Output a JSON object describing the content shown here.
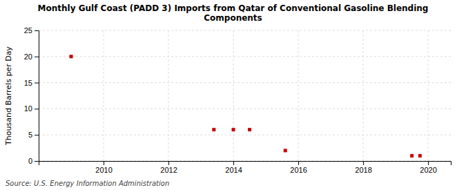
{
  "chart_data": {
    "type": "scatter",
    "title": "Monthly Gulf Coast (PADD 3) Imports from Qatar of Conventional Gasoline Blending\nComponents",
    "y_label": "Thousand Barrels per Day",
    "source": "Source: U.S. Energy Information Administration",
    "x": [
      2009.0,
      2013.4,
      2014.0,
      2014.5,
      2015.6,
      2019.5,
      2019.75
    ],
    "values": [
      20,
      6,
      6,
      6,
      2,
      1,
      1
    ],
    "color": "#cc0000",
    "marker": "square",
    "xlim": [
      2008.0,
      2020.7
    ],
    "ylim": [
      0,
      25
    ],
    "xticks": [
      2010,
      2012,
      2014,
      2016,
      2018,
      2020
    ],
    "yticks": [
      0,
      5,
      10,
      15,
      20,
      25
    ],
    "grid": true
  }
}
